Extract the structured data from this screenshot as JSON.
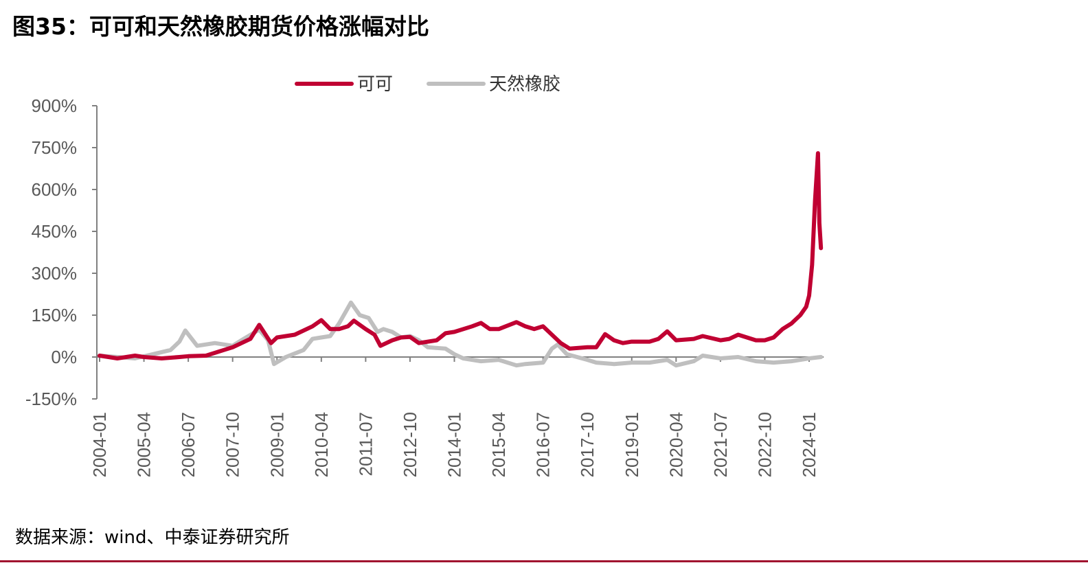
{
  "title": "图35：可可和天然橡胶期货价格涨幅对比",
  "source": "数据来源：wind、中泰证券研究所",
  "chart_data": {
    "type": "line",
    "title": "图35：可可和天然橡胶期货价格涨幅对比",
    "xlabel": "",
    "ylabel": "",
    "ylim": [
      -150,
      900
    ],
    "yticks": [
      "-150%",
      "0%",
      "150%",
      "300%",
      "450%",
      "600%",
      "750%",
      "900%"
    ],
    "ytick_values": [
      -150,
      0,
      150,
      300,
      450,
      600,
      750,
      900
    ],
    "xticks": [
      "2004-01",
      "2005-04",
      "2006-07",
      "2007-10",
      "2009-01",
      "2010-04",
      "2011-07",
      "2012-10",
      "2014-01",
      "2015-04",
      "2016-07",
      "2017-10",
      "2019-01",
      "2020-04",
      "2021-07",
      "2022-10",
      "2024-01"
    ],
    "xlim": [
      "2004-01",
      "2024-05"
    ],
    "grid": false,
    "legend": "top-center",
    "series": [
      {
        "name": "可可",
        "color": "#c00032",
        "points": [
          [
            "2004-01",
            5
          ],
          [
            "2004-07",
            -5
          ],
          [
            "2005-01",
            5
          ],
          [
            "2005-04",
            0
          ],
          [
            "2005-10",
            -5
          ],
          [
            "2006-04",
            0
          ],
          [
            "2006-07",
            3
          ],
          [
            "2007-01",
            5
          ],
          [
            "2007-07",
            25
          ],
          [
            "2007-10",
            35
          ],
          [
            "2008-04",
            65
          ],
          [
            "2008-07",
            115
          ],
          [
            "2008-11",
            50
          ],
          [
            "2009-01",
            70
          ],
          [
            "2009-07",
            80
          ],
          [
            "2010-01",
            110
          ],
          [
            "2010-04",
            132
          ],
          [
            "2010-07",
            100
          ],
          [
            "2010-10",
            100
          ],
          [
            "2011-01",
            110
          ],
          [
            "2011-03",
            130
          ],
          [
            "2011-07",
            100
          ],
          [
            "2011-10",
            80
          ],
          [
            "2011-12",
            40
          ],
          [
            "2012-04",
            60
          ],
          [
            "2012-07",
            70
          ],
          [
            "2012-10",
            72
          ],
          [
            "2013-01",
            50
          ],
          [
            "2013-07",
            60
          ],
          [
            "2013-10",
            85
          ],
          [
            "2014-01",
            90
          ],
          [
            "2014-07",
            110
          ],
          [
            "2014-10",
            122
          ],
          [
            "2015-01",
            100
          ],
          [
            "2015-04",
            100
          ],
          [
            "2015-10",
            125
          ],
          [
            "2016-01",
            110
          ],
          [
            "2016-04",
            100
          ],
          [
            "2016-07",
            110
          ],
          [
            "2016-10",
            80
          ],
          [
            "2017-01",
            50
          ],
          [
            "2017-04",
            30
          ],
          [
            "2017-10",
            35
          ],
          [
            "2018-01",
            35
          ],
          [
            "2018-04",
            82
          ],
          [
            "2018-07",
            60
          ],
          [
            "2018-10",
            50
          ],
          [
            "2019-01",
            55
          ],
          [
            "2019-07",
            55
          ],
          [
            "2019-10",
            65
          ],
          [
            "2020-01",
            92
          ],
          [
            "2020-04",
            60
          ],
          [
            "2020-10",
            65
          ],
          [
            "2021-01",
            75
          ],
          [
            "2021-07",
            60
          ],
          [
            "2021-10",
            65
          ],
          [
            "2022-01",
            80
          ],
          [
            "2022-07",
            60
          ],
          [
            "2022-10",
            60
          ],
          [
            "2023-01",
            70
          ],
          [
            "2023-04",
            100
          ],
          [
            "2023-07",
            120
          ],
          [
            "2023-10",
            150
          ],
          [
            "2023-12",
            180
          ],
          [
            "2024-01",
            220
          ],
          [
            "2024-02",
            330
          ],
          [
            "2024-03",
            560
          ],
          [
            "2024-04",
            730
          ],
          [
            "2024-04-15",
            480
          ],
          [
            "2024-05",
            390
          ]
        ]
      },
      {
        "name": "天然橡胶",
        "color": "#bfbfbf",
        "points": [
          [
            "2004-01",
            5
          ],
          [
            "2004-07",
            0
          ],
          [
            "2005-01",
            -5
          ],
          [
            "2005-07",
            10
          ],
          [
            "2006-01",
            25
          ],
          [
            "2006-04",
            55
          ],
          [
            "2006-06",
            95
          ],
          [
            "2006-10",
            40
          ],
          [
            "2007-01",
            45
          ],
          [
            "2007-04",
            50
          ],
          [
            "2007-10",
            40
          ],
          [
            "2008-01",
            60
          ],
          [
            "2008-07",
            98
          ],
          [
            "2008-10",
            60
          ],
          [
            "2008-12",
            -25
          ],
          [
            "2009-04",
            0
          ],
          [
            "2009-10",
            25
          ],
          [
            "2010-01",
            65
          ],
          [
            "2010-04",
            70
          ],
          [
            "2010-07",
            75
          ],
          [
            "2010-10",
            120
          ],
          [
            "2011-02",
            195
          ],
          [
            "2011-05",
            150
          ],
          [
            "2011-08",
            140
          ],
          [
            "2011-11",
            90
          ],
          [
            "2012-01",
            100
          ],
          [
            "2012-04",
            90
          ],
          [
            "2012-07",
            70
          ],
          [
            "2012-10",
            75
          ],
          [
            "2013-01",
            60
          ],
          [
            "2013-04",
            35
          ],
          [
            "2013-10",
            30
          ],
          [
            "2014-01",
            10
          ],
          [
            "2014-04",
            -5
          ],
          [
            "2014-10",
            -15
          ],
          [
            "2015-04",
            -10
          ],
          [
            "2015-10",
            -30
          ],
          [
            "2016-01",
            -25
          ],
          [
            "2016-07",
            -20
          ],
          [
            "2016-10",
            30
          ],
          [
            "2016-12",
            45
          ],
          [
            "2017-03",
            10
          ],
          [
            "2017-10",
            -10
          ],
          [
            "2018-01",
            -20
          ],
          [
            "2018-07",
            -25
          ],
          [
            "2019-01",
            -20
          ],
          [
            "2019-07",
            -20
          ],
          [
            "2020-01",
            -10
          ],
          [
            "2020-04",
            -30
          ],
          [
            "2020-10",
            -15
          ],
          [
            "2021-01",
            5
          ],
          [
            "2021-04",
            0
          ],
          [
            "2021-07",
            -5
          ],
          [
            "2022-01",
            0
          ],
          [
            "2022-07",
            -15
          ],
          [
            "2023-01",
            -20
          ],
          [
            "2023-07",
            -15
          ],
          [
            "2024-01",
            -5
          ],
          [
            "2024-05",
            0
          ]
        ]
      }
    ]
  }
}
